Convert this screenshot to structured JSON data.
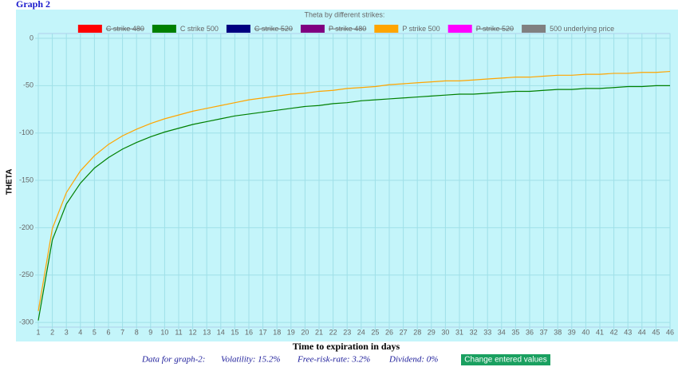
{
  "header": {
    "title": "Graph 2"
  },
  "chart_data": {
    "type": "line",
    "title": "Theta by different strikes:",
    "x_label": "Time to expiration in days",
    "y_label": "THETA",
    "x": [
      1,
      2,
      3,
      4,
      5,
      6,
      7,
      8,
      9,
      10,
      11,
      12,
      13,
      14,
      15,
      16,
      17,
      18,
      19,
      20,
      21,
      22,
      23,
      24,
      25,
      26,
      27,
      28,
      29,
      30,
      31,
      32,
      33,
      34,
      35,
      36,
      37,
      38,
      39,
      40,
      41,
      42,
      43,
      44,
      45,
      46
    ],
    "xlim": [
      1,
      46
    ],
    "xticks": [
      1,
      2,
      3,
      4,
      5,
      6,
      7,
      8,
      9,
      10,
      11,
      12,
      13,
      14,
      15,
      16,
      17,
      18,
      19,
      20,
      21,
      22,
      23,
      24,
      25,
      26,
      27,
      28,
      29,
      30,
      31,
      32,
      33,
      34,
      35,
      36,
      37,
      38,
      39,
      40,
      41,
      42,
      43,
      44,
      45,
      46
    ],
    "ylim": [
      -305,
      0
    ],
    "yticks": [
      -300,
      -250,
      -200,
      -150,
      -100,
      -50,
      0
    ],
    "grid": true,
    "series": [
      {
        "name": "C strike 480",
        "color": "#ff0000",
        "hidden": true
      },
      {
        "name": "C strike 500",
        "color": "#008000",
        "values": [
          -298,
          -213,
          -175,
          -153,
          -137,
          -126,
          -117,
          -110,
          -104,
          -99,
          -95,
          -91,
          -88,
          -85,
          -82,
          -80,
          -78,
          -76,
          -74,
          -72,
          -71,
          -69,
          -68,
          -66,
          -65,
          -64,
          -63,
          -62,
          -61,
          -60,
          -59,
          -59,
          -58,
          -57,
          -56,
          -56,
          -55,
          -54,
          -54,
          -53,
          -53,
          -52,
          -51,
          -51,
          -50,
          -50
        ]
      },
      {
        "name": "C strike 520",
        "color": "#000080",
        "hidden": true
      },
      {
        "name": "P strike 480",
        "color": "#800080",
        "hidden": true
      },
      {
        "name": "P strike 500",
        "color": "#ffa500",
        "values": [
          -288,
          -201,
          -163,
          -140,
          -124,
          -112,
          -103,
          -96,
          -90,
          -85,
          -81,
          -77,
          -74,
          -71,
          -68,
          -65,
          -63,
          -61,
          -59,
          -58,
          -56,
          -55,
          -53,
          -52,
          -51,
          -49,
          -48,
          -47,
          -46,
          -45,
          -45,
          -44,
          -43,
          -42,
          -41,
          -41,
          -40,
          -39,
          -39,
          -38,
          -38,
          -37,
          -37,
          -36,
          -36,
          -35
        ]
      },
      {
        "name": "P strike 520",
        "color": "#ff00ff",
        "hidden": true
      },
      {
        "name": "500 underlying price",
        "color": "#808080"
      }
    ]
  },
  "footer": {
    "label": "Data for graph-2:",
    "volatility": "Volatility: 15.2%",
    "rate": "Free-risk-rate: 3.2%",
    "dividend": "Dividend: 0%",
    "button": "Change entered values"
  }
}
